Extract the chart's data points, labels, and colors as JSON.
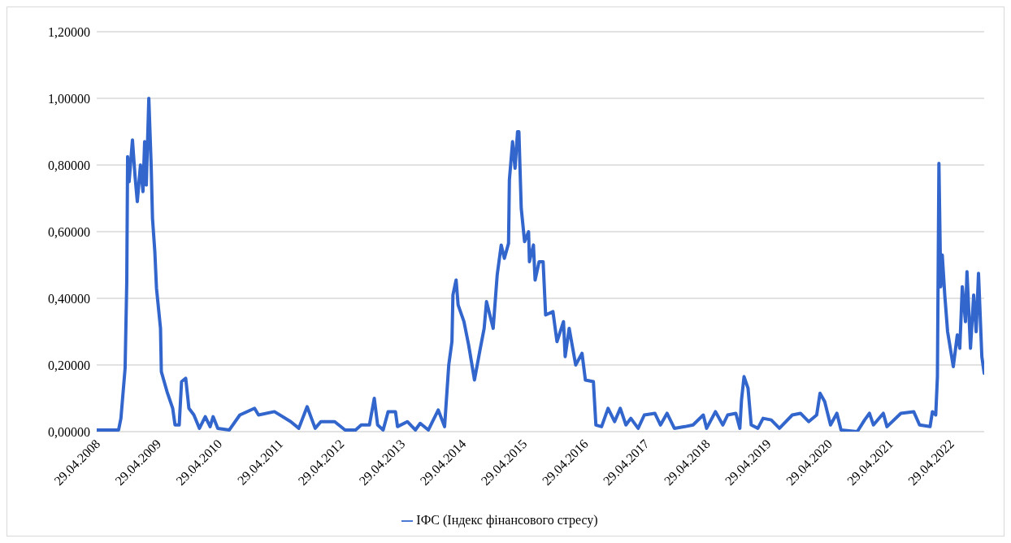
{
  "chart_data": {
    "type": "line",
    "x": [
      "2008-04-04",
      "2008-08-13",
      "2008-08-27",
      "2008-09-21",
      "2008-10-01",
      "2008-10-06",
      "2008-10-15",
      "2008-11-04",
      "2008-11-19",
      "2008-12-03",
      "2008-12-22",
      "2009-01-06",
      "2009-01-16",
      "2009-01-26",
      "2009-02-10",
      "2009-02-24",
      "2009-03-04",
      "2009-03-18",
      "2009-03-28",
      "2009-04-21",
      "2009-04-26",
      "2009-05-30",
      "2009-07-03",
      "2009-07-17",
      "2009-08-11",
      "2009-08-25",
      "2009-09-19",
      "2009-10-08",
      "2009-11-07",
      "2009-12-10",
      "2010-01-14",
      "2010-02-12",
      "2010-03-02",
      "2010-03-30",
      "2010-06-07",
      "2010-08-09",
      "2010-11-05",
      "2010-11-29",
      "2011-03-04",
      "2011-06-10",
      "2011-07-28",
      "2011-09-16",
      "2011-11-03",
      "2011-12-07",
      "2012-02-28",
      "2012-04-30",
      "2012-07-02",
      "2012-08-05",
      "2012-09-23",
      "2012-10-22",
      "2012-11-11",
      "2012-12-14",
      "2013-01-13",
      "2013-02-26",
      "2013-03-10",
      "2013-05-08",
      "2013-06-25",
      "2013-07-24",
      "2013-09-11",
      "2013-11-09",
      "2013-12-17",
      "2014-01-11",
      "2014-01-30",
      "2014-02-05",
      "2014-02-24",
      "2014-03-08",
      "2014-04-12",
      "2014-05-10",
      "2014-06-14",
      "2014-07-17",
      "2014-08-11",
      "2014-08-25",
      "2014-10-04",
      "2014-10-28",
      "2014-11-21",
      "2014-12-10",
      "2015-01-04",
      "2015-01-09",
      "2015-01-28",
      "2015-02-12",
      "2015-02-27",
      "2015-03-07",
      "2015-03-21",
      "2015-04-10",
      "2015-05-04",
      "2015-05-09",
      "2015-06-02",
      "2015-06-12",
      "2015-07-06",
      "2015-07-30",
      "2015-08-14",
      "2015-09-27",
      "2015-10-21",
      "2015-11-29",
      "2015-12-09",
      "2016-01-02",
      "2016-02-10",
      "2016-03-19",
      "2016-04-08",
      "2016-05-26",
      "2016-06-10",
      "2016-07-14",
      "2016-08-22",
      "2016-09-30",
      "2016-11-03",
      "2016-12-07",
      "2017-01-05",
      "2017-02-18",
      "2017-03-27",
      "2017-05-29",
      "2017-07-02",
      "2017-08-10",
      "2017-09-23",
      "2017-11-25",
      "2018-01-13",
      "2018-03-15",
      "2018-04-04",
      "2018-05-27",
      "2018-07-10",
      "2018-08-08",
      "2018-09-26",
      "2018-10-20",
      "2018-10-30",
      "2018-11-14",
      "2018-12-08",
      "2018-12-27",
      "2019-02-05",
      "2019-03-08",
      "2019-04-26",
      "2019-06-14",
      "2019-08-30",
      "2019-10-18",
      "2019-12-06",
      "2020-01-23",
      "2020-02-12",
      "2020-03-11",
      "2020-04-15",
      "2020-05-23",
      "2020-06-17",
      "2020-09-22",
      "2020-11-05",
      "2020-12-04",
      "2020-12-28",
      "2021-02-25",
      "2021-03-19",
      "2021-06-10",
      "2021-08-26",
      "2021-09-30",
      "2021-12-02",
      "2021-12-16",
      "2022-01-05",
      "2022-01-15",
      "2022-01-24",
      "2022-02-04",
      "2022-02-13",
      "2022-02-28",
      "2022-03-17",
      "2022-04-20",
      "2022-05-14",
      "2022-05-29",
      "2022-06-13",
      "2022-07-02",
      "2022-07-11",
      "2022-08-01",
      "2022-08-20",
      "2022-09-04",
      "2022-09-18",
      "2022-10-08",
      "2022-10-22"
    ],
    "series": [
      {
        "name": "ІФС (Індекс фінансового стресу)",
        "color": "#3366cc",
        "values": [
          0.005,
          0.005,
          0.04,
          0.19,
          0.45,
          0.825,
          0.75,
          0.875,
          0.77,
          0.69,
          0.8,
          0.72,
          0.87,
          0.74,
          1.0,
          0.8,
          0.64,
          0.54,
          0.43,
          0.31,
          0.18,
          0.12,
          0.07,
          0.02,
          0.02,
          0.15,
          0.16,
          0.07,
          0.05,
          0.01,
          0.045,
          0.015,
          0.045,
          0.01,
          0.005,
          0.05,
          0.07,
          0.05,
          0.06,
          0.03,
          0.01,
          0.075,
          0.01,
          0.03,
          0.03,
          0.005,
          0.005,
          0.02,
          0.02,
          0.1,
          0.02,
          0.005,
          0.06,
          0.06,
          0.015,
          0.03,
          0.005,
          0.025,
          0.005,
          0.065,
          0.015,
          0.2,
          0.27,
          0.41,
          0.455,
          0.38,
          0.33,
          0.26,
          0.155,
          0.245,
          0.31,
          0.39,
          0.31,
          0.47,
          0.56,
          0.52,
          0.565,
          0.755,
          0.87,
          0.79,
          0.9,
          0.9,
          0.67,
          0.57,
          0.6,
          0.51,
          0.56,
          0.455,
          0.51,
          0.51,
          0.35,
          0.36,
          0.27,
          0.33,
          0.225,
          0.31,
          0.2,
          0.235,
          0.155,
          0.15,
          0.02,
          0.015,
          0.07,
          0.03,
          0.07,
          0.02,
          0.04,
          0.01,
          0.05,
          0.055,
          0.02,
          0.055,
          0.01,
          0.015,
          0.02,
          0.05,
          0.01,
          0.06,
          0.02,
          0.05,
          0.055,
          0.01,
          0.095,
          0.165,
          0.13,
          0.02,
          0.01,
          0.04,
          0.035,
          0.01,
          0.05,
          0.055,
          0.03,
          0.05,
          0.115,
          0.09,
          0.02,
          0.055,
          0.005,
          0.0,
          0.035,
          0.055,
          0.02,
          0.055,
          0.015,
          0.055,
          0.06,
          0.02,
          0.015,
          0.06,
          0.05,
          0.165,
          0.805,
          0.435,
          0.53,
          0.41,
          0.3,
          0.195,
          0.29,
          0.25,
          0.435,
          0.33,
          0.48,
          0.25,
          0.41,
          0.3,
          0.475,
          0.225,
          0.175
        ]
      }
    ],
    "xlim": [
      "2008-04-04",
      "2022-10-22"
    ],
    "xticks": [
      {
        "value": "2008-04-29",
        "label": "29.04.2008"
      },
      {
        "value": "2009-04-29",
        "label": "29.04.2009"
      },
      {
        "value": "2010-04-29",
        "label": "29.04.2010"
      },
      {
        "value": "2011-04-29",
        "label": "29.04.2011"
      },
      {
        "value": "2012-04-29",
        "label": "29.04.2012"
      },
      {
        "value": "2013-04-29",
        "label": "29.04.2013"
      },
      {
        "value": "2014-04-29",
        "label": "29.04.2014"
      },
      {
        "value": "2015-04-29",
        "label": "29.04.2015"
      },
      {
        "value": "2016-04-29",
        "label": "29.04.2016"
      },
      {
        "value": "2017-04-29",
        "label": "29.04.2017"
      },
      {
        "value": "2018-04-29",
        "label": "29.04.2018"
      },
      {
        "value": "2019-04-29",
        "label": "29.04.2019"
      },
      {
        "value": "2020-04-29",
        "label": "29.04.2020"
      },
      {
        "value": "2021-04-29",
        "label": "29.04.2021"
      },
      {
        "value": "2022-04-29",
        "label": "29.04.2022"
      }
    ],
    "ylim": [
      0,
      1.2
    ],
    "yticks": [
      {
        "value": 0,
        "label": "0,00000"
      },
      {
        "value": 0.2,
        "label": "0,20000"
      },
      {
        "value": 0.4,
        "label": "0,40000"
      },
      {
        "value": 0.6,
        "label": "0,60000"
      },
      {
        "value": 0.8,
        "label": "0,80000"
      },
      {
        "value": 1,
        "label": "1,00000"
      },
      {
        "value": 1.2,
        "label": "1,20000"
      }
    ],
    "grid": "y",
    "legend": "bottom",
    "marker": "none",
    "line_style": "solid"
  }
}
